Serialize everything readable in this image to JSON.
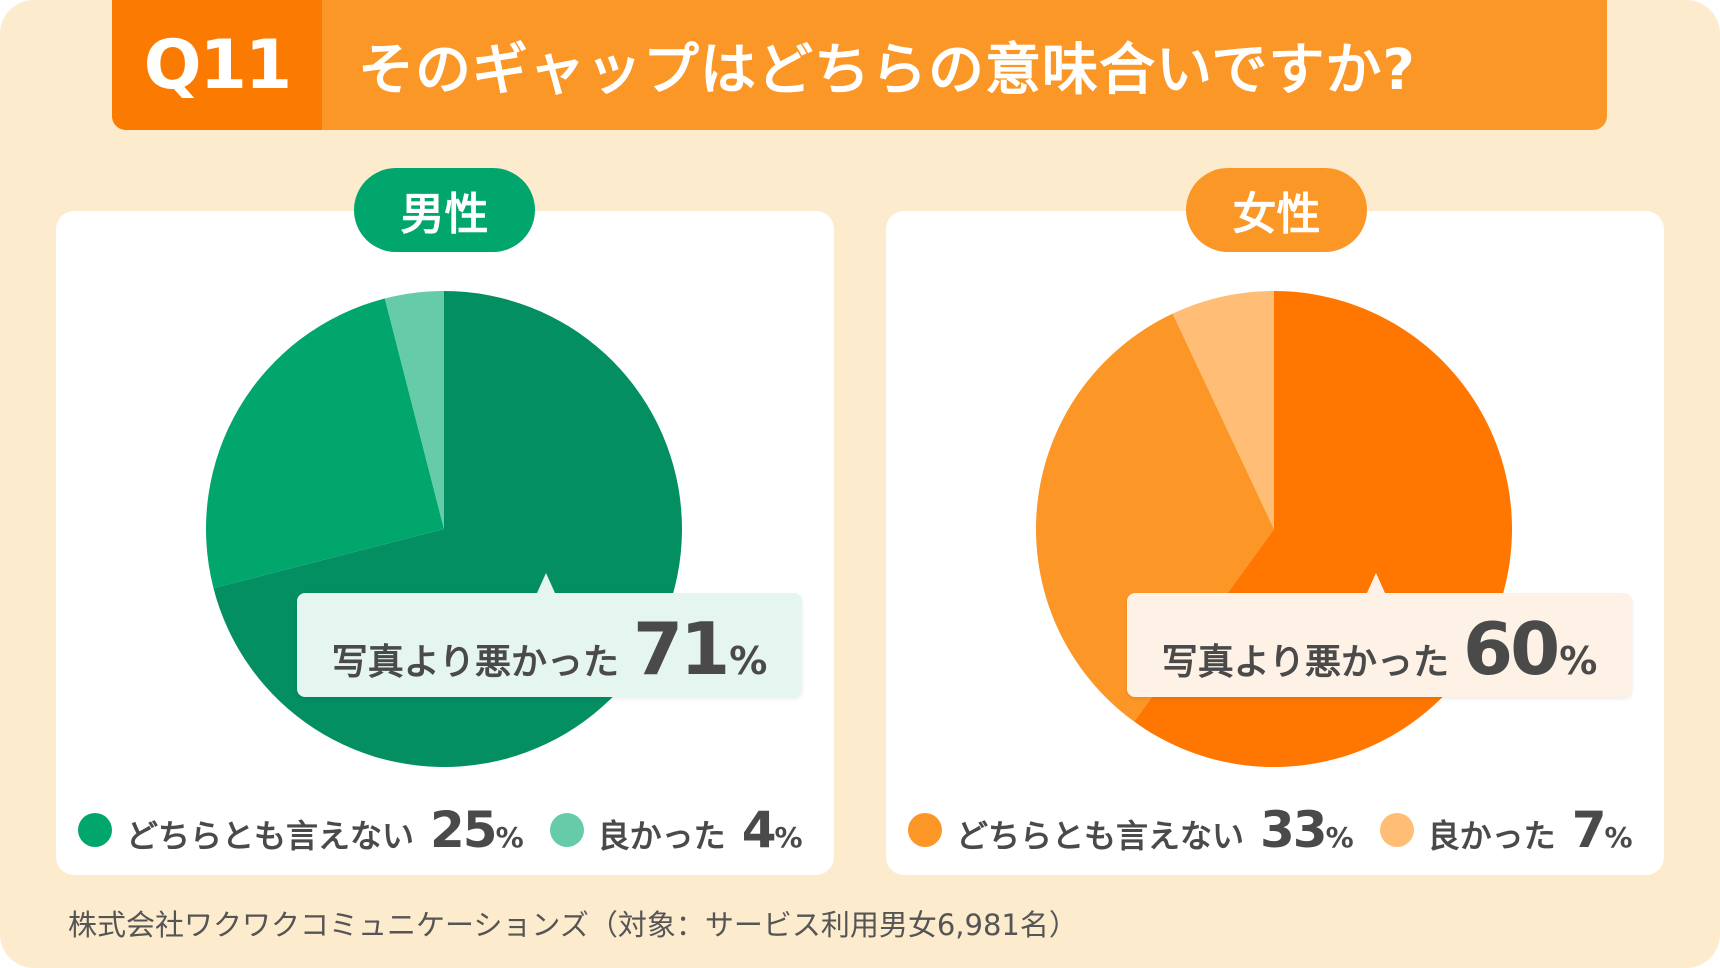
{
  "header": {
    "q_number": "Q11",
    "title": "そのギャップはどちらの意味合いですか?"
  },
  "colors": {
    "background": "#fdebcd",
    "header": "#fb9727",
    "header_q": "#fb7a02"
  },
  "chart_data": [
    {
      "type": "pie",
      "title": "男性",
      "categories": [
        "写真より悪かった",
        "どちらとも言えない",
        "良かった"
      ],
      "values": [
        71,
        25,
        4
      ],
      "unit": "%",
      "colors": [
        "#038f62",
        "#00a66b",
        "#66cba8"
      ],
      "pill_color": "#00a66b",
      "callout_bg": "#e5f5ef",
      "callout": {
        "label": "写真より悪かった",
        "value": "71",
        "unit": "%"
      },
      "legend": [
        {
          "label": "どちらとも言えない",
          "value": "25",
          "unit": "%"
        },
        {
          "label": "良かった",
          "value": "4",
          "unit": "%"
        }
      ]
    },
    {
      "type": "pie",
      "title": "女性",
      "categories": [
        "写真より悪かった",
        "どちらとも言えない",
        "良かった"
      ],
      "values": [
        60,
        33,
        7
      ],
      "unit": "%",
      "colors": [
        "#ff7700",
        "#fc9627",
        "#ffbd75"
      ],
      "pill_color": "#fb9727",
      "callout_bg": "#fef2e6",
      "callout": {
        "label": "写真より悪かった",
        "value": "60",
        "unit": "%"
      },
      "legend": [
        {
          "label": "どちらとも言えない",
          "value": "33",
          "unit": "%"
        },
        {
          "label": "良かった",
          "value": "7",
          "unit": "%"
        }
      ]
    }
  ],
  "footer": "株式会社ワクワクコミュニケーションズ（対象：サービス利用男女6,981名）"
}
